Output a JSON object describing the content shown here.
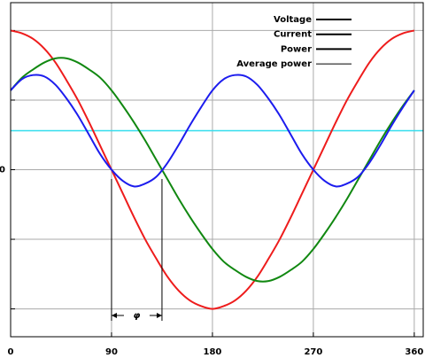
{
  "chart_data": {
    "type": "line",
    "x": [
      0,
      10,
      20,
      30,
      40,
      50,
      60,
      70,
      80,
      90,
      100,
      110,
      120,
      130,
      140,
      150,
      160,
      170,
      180,
      190,
      200,
      210,
      220,
      230,
      240,
      250,
      260,
      270,
      280,
      290,
      300,
      310,
      320,
      330,
      340,
      350,
      360
    ],
    "series": [
      {
        "name": "Voltage",
        "color": "#ee1c1c",
        "values": [
          1,
          0.98,
          0.94,
          0.87,
          0.77,
          0.64,
          0.5,
          0.34,
          0.17,
          0,
          -0.17,
          -0.34,
          -0.5,
          -0.64,
          -0.77,
          -0.87,
          -0.94,
          -0.98,
          -1,
          -0.98,
          -0.94,
          -0.87,
          -0.77,
          -0.64,
          -0.5,
          -0.34,
          -0.17,
          0,
          0.17,
          0.34,
          0.5,
          0.64,
          0.77,
          0.87,
          0.94,
          0.98,
          1
        ]
      },
      {
        "name": "Current",
        "color": "#118811",
        "values": [
          0.57,
          0.66,
          0.72,
          0.77,
          0.8,
          0.8,
          0.77,
          0.72,
          0.66,
          0.57,
          0.46,
          0.34,
          0.21,
          0.07,
          -0.07,
          -0.21,
          -0.34,
          -0.46,
          -0.57,
          -0.66,
          -0.72,
          -0.77,
          -0.8,
          -0.8,
          -0.77,
          -0.72,
          -0.66,
          -0.57,
          -0.46,
          -0.34,
          -0.21,
          -0.07,
          0.07,
          0.21,
          0.34,
          0.46,
          0.57
        ]
      },
      {
        "name": "Power",
        "color": "#1c1cee",
        "values": [
          0.57,
          0.65,
          0.68,
          0.67,
          0.61,
          0.51,
          0.39,
          0.25,
          0.11,
          0,
          -0.08,
          -0.12,
          -0.1,
          -0.05,
          0.05,
          0.18,
          0.32,
          0.45,
          0.57,
          0.65,
          0.68,
          0.67,
          0.61,
          0.51,
          0.39,
          0.25,
          0.11,
          0,
          -0.08,
          -0.12,
          -0.1,
          -0.05,
          0.05,
          0.18,
          0.32,
          0.45,
          0.57
        ]
      }
    ],
    "average": {
      "name": "Average power",
      "color": "#33ddee",
      "value": 0.28
    },
    "legend_line_color": "#000000",
    "xlim": [
      0,
      368
    ],
    "xticks": [
      0,
      90,
      180,
      270,
      360
    ],
    "ylim": [
      -1.2,
      1.2
    ],
    "yticks": [
      0
    ],
    "ygrid": [
      -1,
      -0.5,
      0.5,
      1
    ],
    "grid": true,
    "phase_marker": {
      "from": 90,
      "to": 135,
      "label": "φ"
    }
  }
}
